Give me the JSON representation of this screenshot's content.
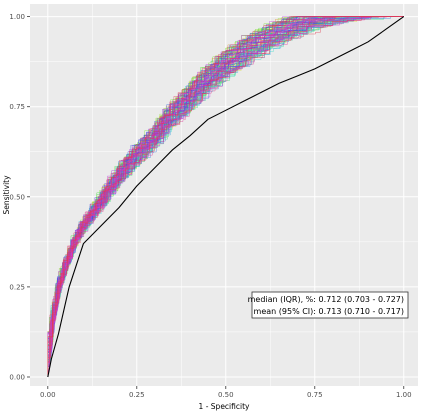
{
  "chart_data": {
    "type": "line",
    "title": "",
    "xlabel": "1 - Specificity",
    "ylabel": "Sensitivity",
    "xlim": [
      -0.05,
      1.04
    ],
    "ylim": [
      -0.025,
      1.035
    ],
    "x_ticks": [
      0.0,
      0.25,
      0.5,
      0.75,
      1.0
    ],
    "x_tick_labels": [
      "0.00",
      "0.25",
      "0.50",
      "0.75",
      "1.00"
    ],
    "y_ticks": [
      0.0,
      0.25,
      0.5,
      0.75,
      1.0
    ],
    "y_tick_labels": [
      "0.00",
      "0.25",
      "0.50",
      "0.75",
      "1.00"
    ],
    "grid": true,
    "legend": "none",
    "panel_background": "#ebebeb",
    "grid_color": "#ffffff",
    "series_count": 100,
    "series_style": "thin multicolored step curves (individual bootstrap/resample ROC curves)",
    "median_curve": {
      "color": "#000000",
      "x": [
        0.0,
        0.01,
        0.03,
        0.06,
        0.1,
        0.15,
        0.2,
        0.25,
        0.3,
        0.35,
        0.4,
        0.45,
        0.5,
        0.55,
        0.6,
        0.65,
        0.7,
        0.75,
        0.8,
        0.85,
        0.9,
        0.95,
        1.0
      ],
      "y": [
        0.0,
        0.05,
        0.12,
        0.25,
        0.37,
        0.42,
        0.47,
        0.53,
        0.58,
        0.63,
        0.67,
        0.715,
        0.74,
        0.765,
        0.79,
        0.815,
        0.835,
        0.855,
        0.88,
        0.905,
        0.93,
        0.965,
        1.0
      ]
    },
    "mean_envelope": {
      "x": [
        0.0,
        0.01,
        0.02,
        0.04,
        0.06,
        0.08,
        0.1,
        0.15,
        0.2,
        0.25,
        0.3,
        0.35,
        0.4,
        0.45,
        0.5,
        0.55,
        0.6,
        0.65,
        0.7,
        0.75,
        0.8,
        0.85,
        0.9,
        0.95,
        1.0
      ],
      "y": [
        0.0,
        0.07,
        0.16,
        0.26,
        0.32,
        0.37,
        0.41,
        0.48,
        0.55,
        0.61,
        0.66,
        0.72,
        0.77,
        0.82,
        0.86,
        0.895,
        0.925,
        0.95,
        0.97,
        0.985,
        0.993,
        0.997,
        0.999,
        1.0,
        1.0
      ]
    },
    "annotation": {
      "line1": "median (IQR), %: 0.712 (0.703 - 0.727)",
      "line2": "mean (95% CI): 0.713 (0.710 - 0.717)"
    }
  }
}
